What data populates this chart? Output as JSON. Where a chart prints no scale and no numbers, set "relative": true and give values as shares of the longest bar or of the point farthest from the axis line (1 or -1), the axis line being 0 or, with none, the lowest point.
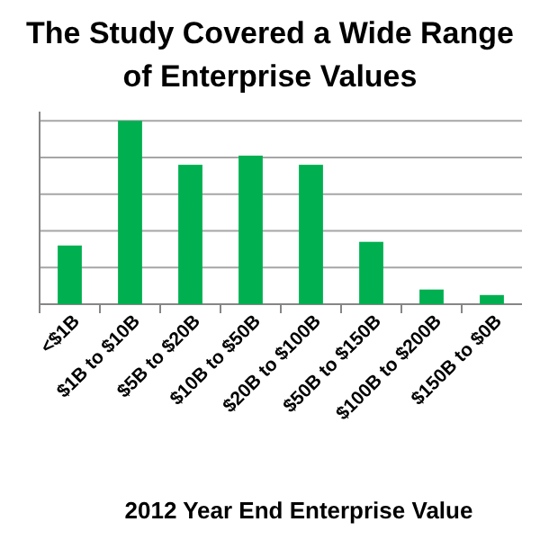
{
  "chart_data": {
    "type": "bar",
    "title": "The Study Covered a Wide Range of Enterprise Values",
    "xlabel": "2012 Year End Enterprise Value",
    "categories": [
      "<$1B",
      "$1B to $10B",
      "$5B to $20B",
      "$10B to $50B",
      "$20B to $100B",
      "$50B to $150B",
      "$100B to $200B",
      "$150B to $0B"
    ],
    "values": [
      0.32,
      1,
      0.76,
      0.81,
      0.76,
      0.34,
      0.08,
      0.05
    ],
    "color": "#00b050",
    "relative": true,
    "grid": "y"
  }
}
